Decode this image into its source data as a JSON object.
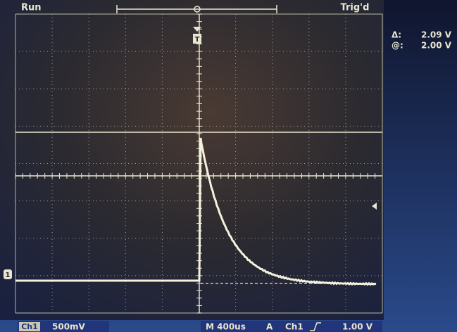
{
  "status": {
    "mode": "Run",
    "trigger": "Trig'd"
  },
  "cursor_readout": {
    "delta_label": "Δ:",
    "delta_value": "2.09 V",
    "at_label": "@:",
    "at_value": "2.00 V"
  },
  "markers": {
    "trigger": "T",
    "channel": "1"
  },
  "footer": {
    "channel": "Ch1",
    "scale": "500mV",
    "timebase": "M 400us",
    "trigger_label": "A",
    "trigger_source": "Ch1",
    "trigger_level": "1.00 V"
  }
}
